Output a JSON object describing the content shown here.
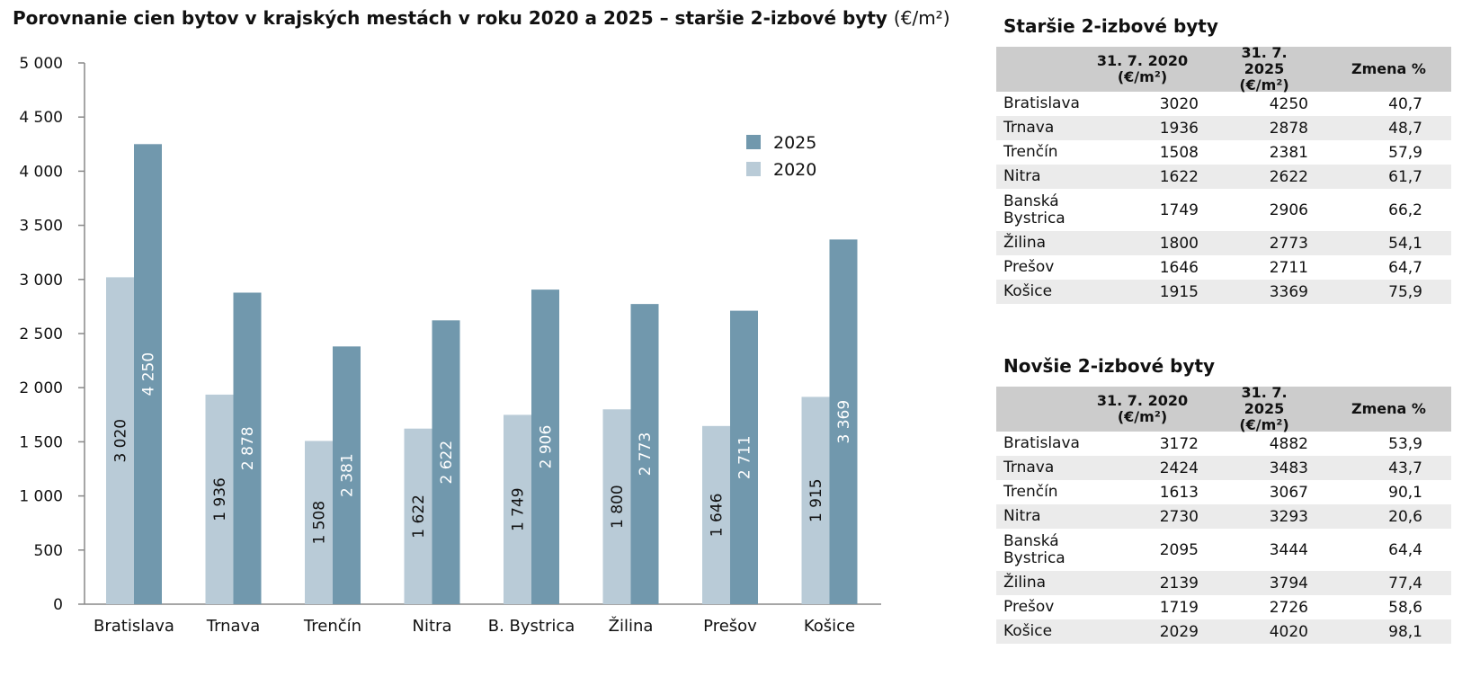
{
  "title": {
    "main": "Porovnanie cien bytov v krajských mestách v roku 2020 a 2025 – staršie 2-izbové byty",
    "unit": "(€/m²)"
  },
  "chart_data": {
    "type": "bar",
    "categories": [
      "Bratislava",
      "Trnava",
      "Trenčín",
      "Nitra",
      "B. Bystrica",
      "Žilina",
      "Prešov",
      "Košice"
    ],
    "series": [
      {
        "name": "2020",
        "values": [
          3020,
          1936,
          1508,
          1622,
          1749,
          1800,
          1646,
          1915
        ],
        "labels": [
          "3 020",
          "1 936",
          "1 508",
          "1 622",
          "1 749",
          "1 800",
          "1 646",
          "1 915"
        ],
        "color": "#b9cbd7",
        "label_color": "#111111"
      },
      {
        "name": "2025",
        "values": [
          4250,
          2878,
          2381,
          2622,
          2906,
          2773,
          2711,
          3369
        ],
        "labels": [
          "4 250",
          "2 878",
          "2 381",
          "2 622",
          "2 906",
          "2 773",
          "2 711",
          "3 369"
        ],
        "color": "#7198ad",
        "label_color": "#ffffff"
      }
    ],
    "ylim": [
      0,
      5000
    ],
    "yticks": [
      0,
      500,
      1000,
      1500,
      2000,
      2500,
      3000,
      3500,
      4000,
      4500,
      5000
    ],
    "ytick_labels": [
      "0",
      "500",
      "1 000",
      "1 500",
      "2 000",
      "2 500",
      "3 000",
      "3 500",
      "4 000",
      "4 500",
      "5 000"
    ],
    "legend": [
      "2025",
      "2020"
    ],
    "legend_position": "top-right",
    "grid": false
  },
  "tables": [
    {
      "title": "Staršie 2-izbové byty",
      "headers": [
        "",
        "31. 7. 2020\n(€/m²)",
        "31. 7. 2025\n(€/m²)",
        "Zmena %"
      ],
      "rows": [
        [
          "Bratislava",
          "3020",
          "4250",
          "40,7"
        ],
        [
          "Trnava",
          "1936",
          "2878",
          "48,7"
        ],
        [
          "Trenčín",
          "1508",
          "2381",
          "57,9"
        ],
        [
          "Nitra",
          "1622",
          "2622",
          "61,7"
        ],
        [
          "Banská\nBystrica",
          "1749",
          "2906",
          "66,2"
        ],
        [
          "Žilina",
          "1800",
          "2773",
          "54,1"
        ],
        [
          "Prešov",
          "1646",
          "2711",
          "64,7"
        ],
        [
          "Košice",
          "1915",
          "3369",
          "75,9"
        ]
      ]
    },
    {
      "title": "Novšie 2-izbové byty",
      "headers": [
        "",
        "31. 7. 2020\n(€/m²)",
        "31. 7. 2025\n(€/m²)",
        "Zmena %"
      ],
      "rows": [
        [
          "Bratislava",
          "3172",
          "4882",
          "53,9"
        ],
        [
          "Trnava",
          "2424",
          "3483",
          "43,7"
        ],
        [
          "Trenčín",
          "1613",
          "3067",
          "90,1"
        ],
        [
          "Nitra",
          "2730",
          "3293",
          "20,6"
        ],
        [
          "Banská\nBystrica",
          "2095",
          "3444",
          "64,4"
        ],
        [
          "Žilina",
          "2139",
          "3794",
          "77,4"
        ],
        [
          "Prešov",
          "1719",
          "2726",
          "58,6"
        ],
        [
          "Košice",
          "2029",
          "4020",
          "98,1"
        ]
      ]
    }
  ]
}
